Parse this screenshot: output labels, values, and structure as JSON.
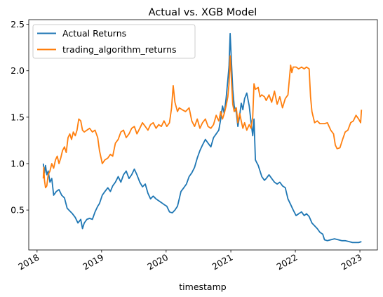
{
  "chart_data": {
    "type": "line",
    "title": "Actual vs. XGB Model",
    "xlabel": "timestamp",
    "ylabel": "",
    "xlim": [
      "2017-11-15",
      "2023-04-10"
    ],
    "ylim": [
      0.07,
      2.55
    ],
    "x_ticks": [
      {
        "date": "2018-01-01",
        "label": "2018"
      },
      {
        "date": "2019-01-01",
        "label": "2019"
      },
      {
        "date": "2020-01-01",
        "label": "2020"
      },
      {
        "date": "2021-01-01",
        "label": "2021"
      },
      {
        "date": "2022-01-01",
        "label": "2022"
      },
      {
        "date": "2023-01-01",
        "label": "2023"
      }
    ],
    "y_ticks": [
      0.5,
      1.0,
      1.5,
      2.0,
      2.5
    ],
    "y_tick_labels": [
      "0.5",
      "1.0",
      "1.5",
      "2.0",
      "2.5"
    ],
    "grid": false,
    "legend_position": "upper-left",
    "series": [
      {
        "name": "Actual Returns",
        "color": "#1f77b4",
        "points": [
          [
            "2018-02-05",
            1.0
          ],
          [
            "2018-02-12",
            0.9
          ],
          [
            "2018-02-18",
            0.98
          ],
          [
            "2018-02-25",
            0.88
          ],
          [
            "2018-03-05",
            0.92
          ],
          [
            "2018-03-15",
            0.8
          ],
          [
            "2018-03-25",
            0.84
          ],
          [
            "2018-04-05",
            0.66
          ],
          [
            "2018-04-20",
            0.7
          ],
          [
            "2018-05-05",
            0.72
          ],
          [
            "2018-05-20",
            0.66
          ],
          [
            "2018-06-05",
            0.63
          ],
          [
            "2018-06-20",
            0.52
          ],
          [
            "2018-07-05",
            0.49
          ],
          [
            "2018-07-20",
            0.46
          ],
          [
            "2018-08-05",
            0.42
          ],
          [
            "2018-08-20",
            0.36
          ],
          [
            "2018-09-05",
            0.4
          ],
          [
            "2018-09-15",
            0.3
          ],
          [
            "2018-09-25",
            0.36
          ],
          [
            "2018-10-10",
            0.4
          ],
          [
            "2018-10-25",
            0.41
          ],
          [
            "2018-11-10",
            0.4
          ],
          [
            "2018-11-25",
            0.48
          ],
          [
            "2018-12-10",
            0.54
          ],
          [
            "2018-12-20",
            0.57
          ],
          [
            "2019-01-05",
            0.66
          ],
          [
            "2019-01-20",
            0.7
          ],
          [
            "2019-02-05",
            0.74
          ],
          [
            "2019-02-20",
            0.7
          ],
          [
            "2019-03-05",
            0.76
          ],
          [
            "2019-03-20",
            0.8
          ],
          [
            "2019-04-05",
            0.86
          ],
          [
            "2019-04-20",
            0.8
          ],
          [
            "2019-05-05",
            0.88
          ],
          [
            "2019-05-20",
            0.92
          ],
          [
            "2019-06-05",
            0.84
          ],
          [
            "2019-06-20",
            0.88
          ],
          [
            "2019-07-05",
            0.94
          ],
          [
            "2019-07-20",
            0.88
          ],
          [
            "2019-08-05",
            0.8
          ],
          [
            "2019-08-20",
            0.75
          ],
          [
            "2019-09-05",
            0.78
          ],
          [
            "2019-09-20",
            0.68
          ],
          [
            "2019-10-05",
            0.62
          ],
          [
            "2019-10-20",
            0.65
          ],
          [
            "2019-11-05",
            0.62
          ],
          [
            "2019-11-20",
            0.6
          ],
          [
            "2019-12-05",
            0.58
          ],
          [
            "2019-12-20",
            0.56
          ],
          [
            "2020-01-05",
            0.54
          ],
          [
            "2020-01-20",
            0.48
          ],
          [
            "2020-02-05",
            0.47
          ],
          [
            "2020-02-20",
            0.5
          ],
          [
            "2020-03-05",
            0.54
          ],
          [
            "2020-03-15",
            0.62
          ],
          [
            "2020-03-25",
            0.7
          ],
          [
            "2020-04-10",
            0.74
          ],
          [
            "2020-04-25",
            0.78
          ],
          [
            "2020-05-10",
            0.86
          ],
          [
            "2020-05-25",
            0.9
          ],
          [
            "2020-06-10",
            0.96
          ],
          [
            "2020-06-25",
            1.06
          ],
          [
            "2020-07-10",
            1.14
          ],
          [
            "2020-07-25",
            1.2
          ],
          [
            "2020-08-10",
            1.26
          ],
          [
            "2020-08-25",
            1.22
          ],
          [
            "2020-09-10",
            1.18
          ],
          [
            "2020-09-25",
            1.28
          ],
          [
            "2020-10-10",
            1.32
          ],
          [
            "2020-10-25",
            1.36
          ],
          [
            "2020-11-05",
            1.48
          ],
          [
            "2020-11-15",
            1.62
          ],
          [
            "2020-11-25",
            1.54
          ],
          [
            "2020-12-05",
            1.7
          ],
          [
            "2020-12-15",
            1.9
          ],
          [
            "2020-12-22",
            2.05
          ],
          [
            "2020-12-28",
            2.4
          ],
          [
            "2021-01-04",
            2.12
          ],
          [
            "2021-01-12",
            1.8
          ],
          [
            "2021-01-20",
            1.62
          ],
          [
            "2021-02-01",
            1.55
          ],
          [
            "2021-02-10",
            1.4
          ],
          [
            "2021-02-20",
            1.52
          ],
          [
            "2021-03-01",
            1.65
          ],
          [
            "2021-03-10",
            1.58
          ],
          [
            "2021-03-20",
            1.7
          ],
          [
            "2021-04-01",
            1.76
          ],
          [
            "2021-04-15",
            1.62
          ],
          [
            "2021-04-25",
            1.45
          ],
          [
            "2021-05-05",
            1.3
          ],
          [
            "2021-05-12",
            1.48
          ],
          [
            "2021-05-20",
            1.04
          ],
          [
            "2021-05-25",
            1.02
          ],
          [
            "2021-06-05",
            0.98
          ],
          [
            "2021-06-15",
            0.92
          ],
          [
            "2021-06-25",
            0.86
          ],
          [
            "2021-07-10",
            0.82
          ],
          [
            "2021-07-20",
            0.84
          ],
          [
            "2021-08-05",
            0.88
          ],
          [
            "2021-08-20",
            0.84
          ],
          [
            "2021-09-05",
            0.8
          ],
          [
            "2021-09-20",
            0.78
          ],
          [
            "2021-10-05",
            0.8
          ],
          [
            "2021-10-20",
            0.76
          ],
          [
            "2021-11-05",
            0.74
          ],
          [
            "2021-11-20",
            0.62
          ],
          [
            "2021-12-05",
            0.56
          ],
          [
            "2021-12-20",
            0.5
          ],
          [
            "2022-01-05",
            0.44
          ],
          [
            "2022-01-20",
            0.46
          ],
          [
            "2022-02-05",
            0.48
          ],
          [
            "2022-02-20",
            0.44
          ],
          [
            "2022-03-05",
            0.46
          ],
          [
            "2022-03-20",
            0.43
          ],
          [
            "2022-04-05",
            0.36
          ],
          [
            "2022-04-20",
            0.33
          ],
          [
            "2022-05-05",
            0.3
          ],
          [
            "2022-05-20",
            0.26
          ],
          [
            "2022-06-05",
            0.24
          ],
          [
            "2022-06-15",
            0.18
          ],
          [
            "2022-07-01",
            0.17
          ],
          [
            "2022-07-20",
            0.18
          ],
          [
            "2022-08-10",
            0.19
          ],
          [
            "2022-09-01",
            0.18
          ],
          [
            "2022-09-20",
            0.17
          ],
          [
            "2022-10-10",
            0.17
          ],
          [
            "2022-11-01",
            0.16
          ],
          [
            "2022-11-20",
            0.15
          ],
          [
            "2022-12-10",
            0.15
          ],
          [
            "2022-12-25",
            0.15
          ],
          [
            "2023-01-10",
            0.16
          ]
        ]
      },
      {
        "name": "trading_algorithm_returns",
        "color": "#ff7f0e",
        "points": [
          [
            "2018-02-05",
            0.84
          ],
          [
            "2018-02-08",
            0.96
          ],
          [
            "2018-02-12",
            0.82
          ],
          [
            "2018-02-18",
            0.74
          ],
          [
            "2018-02-25",
            0.76
          ],
          [
            "2018-03-05",
            0.88
          ],
          [
            "2018-03-15",
            0.92
          ],
          [
            "2018-03-25",
            1.0
          ],
          [
            "2018-04-05",
            0.95
          ],
          [
            "2018-04-15",
            1.04
          ],
          [
            "2018-04-25",
            1.08
          ],
          [
            "2018-05-05",
            1.0
          ],
          [
            "2018-05-15",
            1.06
          ],
          [
            "2018-05-25",
            1.14
          ],
          [
            "2018-06-05",
            1.18
          ],
          [
            "2018-06-15",
            1.12
          ],
          [
            "2018-06-25",
            1.28
          ],
          [
            "2018-07-05",
            1.32
          ],
          [
            "2018-07-15",
            1.26
          ],
          [
            "2018-07-25",
            1.34
          ],
          [
            "2018-08-05",
            1.3
          ],
          [
            "2018-08-15",
            1.36
          ],
          [
            "2018-08-25",
            1.48
          ],
          [
            "2018-09-05",
            1.46
          ],
          [
            "2018-09-15",
            1.36
          ],
          [
            "2018-09-25",
            1.34
          ],
          [
            "2018-10-10",
            1.36
          ],
          [
            "2018-10-25",
            1.38
          ],
          [
            "2018-11-10",
            1.34
          ],
          [
            "2018-11-25",
            1.36
          ],
          [
            "2018-12-10",
            1.28
          ],
          [
            "2018-12-20",
            1.14
          ],
          [
            "2019-01-05",
            1.0
          ],
          [
            "2019-01-20",
            1.04
          ],
          [
            "2019-02-05",
            1.06
          ],
          [
            "2019-02-20",
            1.1
          ],
          [
            "2019-03-05",
            1.08
          ],
          [
            "2019-03-20",
            1.22
          ],
          [
            "2019-04-05",
            1.26
          ],
          [
            "2019-04-20",
            1.34
          ],
          [
            "2019-05-05",
            1.36
          ],
          [
            "2019-05-20",
            1.28
          ],
          [
            "2019-06-05",
            1.32
          ],
          [
            "2019-06-20",
            1.38
          ],
          [
            "2019-07-05",
            1.4
          ],
          [
            "2019-07-20",
            1.32
          ],
          [
            "2019-08-05",
            1.38
          ],
          [
            "2019-08-20",
            1.44
          ],
          [
            "2019-09-05",
            1.4
          ],
          [
            "2019-09-20",
            1.36
          ],
          [
            "2019-10-05",
            1.42
          ],
          [
            "2019-10-20",
            1.44
          ],
          [
            "2019-11-05",
            1.38
          ],
          [
            "2019-11-20",
            1.42
          ],
          [
            "2019-12-05",
            1.4
          ],
          [
            "2019-12-20",
            1.46
          ],
          [
            "2020-01-05",
            1.4
          ],
          [
            "2020-01-20",
            1.44
          ],
          [
            "2020-02-01",
            1.6
          ],
          [
            "2020-02-10",
            1.84
          ],
          [
            "2020-02-20",
            1.66
          ],
          [
            "2020-03-05",
            1.56
          ],
          [
            "2020-03-15",
            1.6
          ],
          [
            "2020-04-01",
            1.58
          ],
          [
            "2020-04-20",
            1.56
          ],
          [
            "2020-05-10",
            1.6
          ],
          [
            "2020-05-25",
            1.46
          ],
          [
            "2020-06-10",
            1.4
          ],
          [
            "2020-06-25",
            1.48
          ],
          [
            "2020-07-10",
            1.38
          ],
          [
            "2020-07-25",
            1.44
          ],
          [
            "2020-08-10",
            1.48
          ],
          [
            "2020-08-25",
            1.4
          ],
          [
            "2020-09-10",
            1.38
          ],
          [
            "2020-09-25",
            1.42
          ],
          [
            "2020-10-10",
            1.52
          ],
          [
            "2020-10-25",
            1.46
          ],
          [
            "2020-11-05",
            1.56
          ],
          [
            "2020-11-15",
            1.48
          ],
          [
            "2020-11-25",
            1.54
          ],
          [
            "2020-12-05",
            1.62
          ],
          [
            "2020-12-15",
            1.72
          ],
          [
            "2020-12-22",
            1.86
          ],
          [
            "2020-12-28",
            2.16
          ],
          [
            "2021-01-04",
            1.92
          ],
          [
            "2021-01-12",
            1.64
          ],
          [
            "2021-01-20",
            1.56
          ],
          [
            "2021-02-01",
            1.6
          ],
          [
            "2021-02-10",
            1.44
          ],
          [
            "2021-02-20",
            1.54
          ],
          [
            "2021-03-01",
            1.46
          ],
          [
            "2021-03-10",
            1.38
          ],
          [
            "2021-03-20",
            1.44
          ],
          [
            "2021-04-01",
            1.36
          ],
          [
            "2021-04-15",
            1.42
          ],
          [
            "2021-04-25",
            1.38
          ],
          [
            "2021-05-05",
            1.5
          ],
          [
            "2021-05-12",
            1.86
          ],
          [
            "2021-05-20",
            1.8
          ],
          [
            "2021-06-05",
            1.82
          ],
          [
            "2021-06-15",
            1.72
          ],
          [
            "2021-06-25",
            1.74
          ],
          [
            "2021-07-10",
            1.72
          ],
          [
            "2021-07-20",
            1.68
          ],
          [
            "2021-08-05",
            1.74
          ],
          [
            "2021-08-20",
            1.66
          ],
          [
            "2021-09-05",
            1.78
          ],
          [
            "2021-09-20",
            1.64
          ],
          [
            "2021-10-05",
            1.72
          ],
          [
            "2021-10-20",
            1.6
          ],
          [
            "2021-11-05",
            1.7
          ],
          [
            "2021-11-20",
            1.74
          ],
          [
            "2021-12-05",
            2.06
          ],
          [
            "2021-12-12",
            1.98
          ],
          [
            "2021-12-20",
            2.04
          ],
          [
            "2022-01-05",
            2.04
          ],
          [
            "2022-01-20",
            2.02
          ],
          [
            "2022-02-05",
            2.04
          ],
          [
            "2022-02-20",
            2.02
          ],
          [
            "2022-03-05",
            2.04
          ],
          [
            "2022-03-20",
            2.02
          ],
          [
            "2022-03-28",
            1.72
          ],
          [
            "2022-04-05",
            1.56
          ],
          [
            "2022-04-20",
            1.44
          ],
          [
            "2022-05-05",
            1.46
          ],
          [
            "2022-05-20",
            1.43
          ],
          [
            "2022-06-05",
            1.43
          ],
          [
            "2022-06-15",
            1.43
          ],
          [
            "2022-07-01",
            1.44
          ],
          [
            "2022-07-20",
            1.36
          ],
          [
            "2022-08-05",
            1.32
          ],
          [
            "2022-08-15",
            1.2
          ],
          [
            "2022-08-25",
            1.16
          ],
          [
            "2022-09-10",
            1.17
          ],
          [
            "2022-09-25",
            1.26
          ],
          [
            "2022-10-10",
            1.34
          ],
          [
            "2022-10-25",
            1.36
          ],
          [
            "2022-11-10",
            1.44
          ],
          [
            "2022-11-25",
            1.46
          ],
          [
            "2022-12-10",
            1.52
          ],
          [
            "2022-12-25",
            1.48
          ],
          [
            "2023-01-05",
            1.44
          ],
          [
            "2023-01-10",
            1.58
          ]
        ]
      }
    ]
  }
}
